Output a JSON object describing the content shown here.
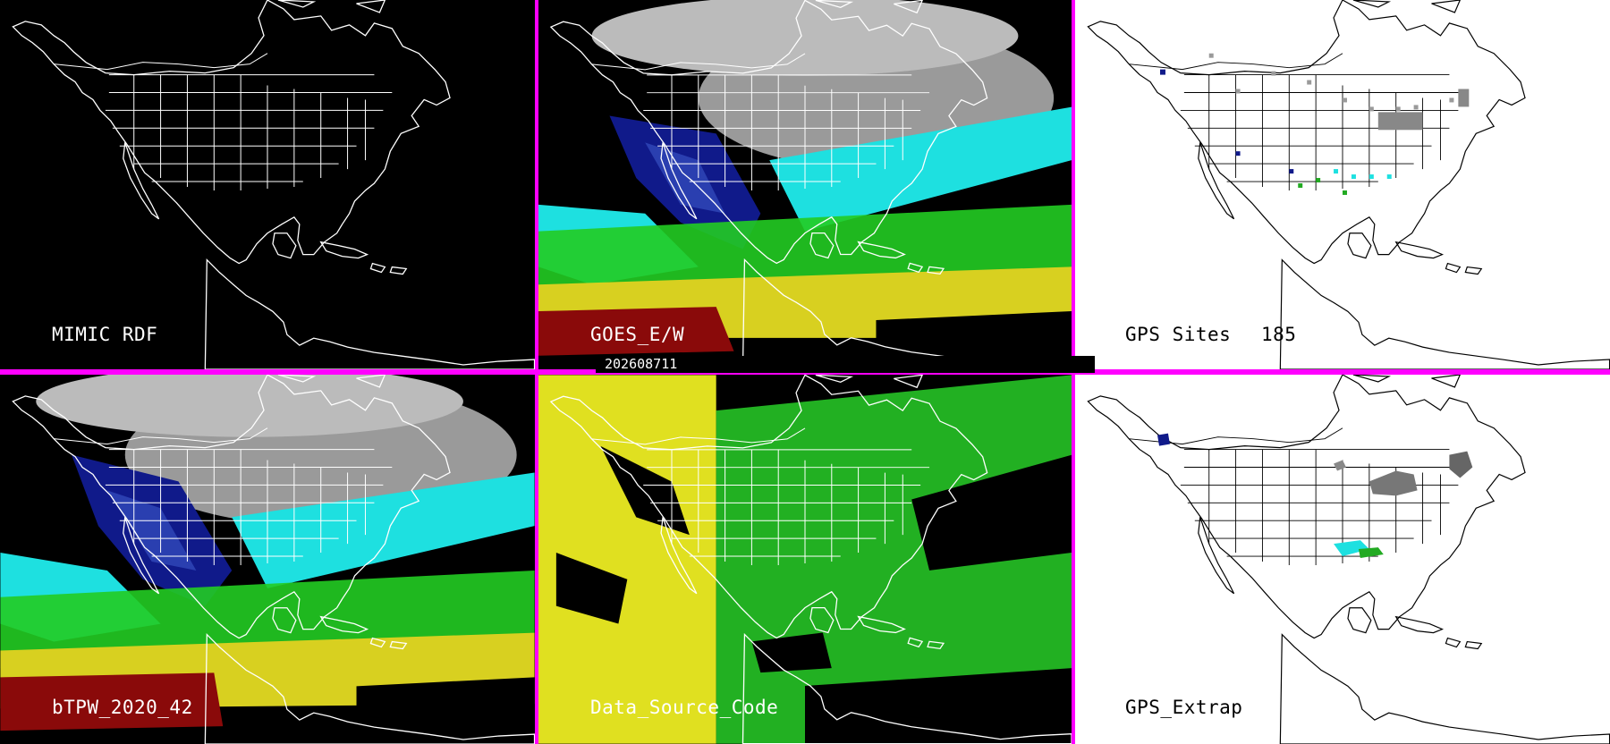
{
  "timestamp": "202608711",
  "panels": {
    "mimic_rdf": {
      "label": "MIMIC RDF"
    },
    "goes_ew": {
      "label": "GOES_E/W"
    },
    "gps_sites": {
      "label": "GPS Sites",
      "count": "185"
    },
    "btpw": {
      "label": "bTPW_2020_42"
    },
    "data_source": {
      "label": "Data_Source_Code"
    },
    "gps_extrap": {
      "label": "GPS_Extrap"
    }
  },
  "colors": {
    "divider": "#ff00ff",
    "coast_dark": "#ffffff",
    "coast_light": "#000000",
    "tpw_dry": "#101a8a",
    "tpw_mid": "#1ee0e0",
    "tpw_green": "#22cc22",
    "tpw_yellow": "#d8d020",
    "tpw_red": "#8a0a0a",
    "clear_gray": "#9a9a9a",
    "source_yellow": "#e0e020",
    "source_green": "#22b022"
  }
}
